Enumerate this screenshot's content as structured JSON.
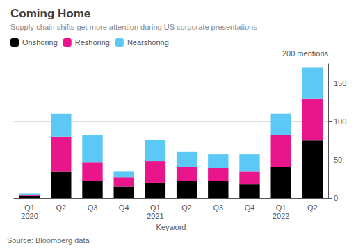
{
  "chart_data": {
    "type": "bar",
    "stacked": true,
    "title": "Coming Home",
    "subtitle": "Supply-chain shifts get more attention during US corporate presentations",
    "xlabel": "Keyword",
    "ylabel": "200 mentions",
    "annotations": [
      "Source: Bloomberg data"
    ],
    "categories": [
      "Q1\n2020",
      "Q2",
      "Q3",
      "Q4",
      "Q1\n2021",
      "Q2",
      "Q3",
      "Q4",
      "Q1\n2022",
      "Q2"
    ],
    "series": [
      {
        "name": "Onshoring",
        "color": "#000000",
        "values": [
          3,
          35,
          22,
          15,
          20,
          22,
          22,
          18,
          40,
          75
        ]
      },
      {
        "name": "Reshoring",
        "color": "#e8168a",
        "values": [
          1,
          45,
          25,
          12,
          28,
          18,
          17,
          17,
          42,
          55
        ]
      },
      {
        "name": "Nearshoring",
        "color": "#5bc8f5",
        "values": [
          2,
          30,
          35,
          8,
          28,
          20,
          18,
          22,
          28,
          40
        ]
      }
    ],
    "ylim": [
      0,
      175
    ],
    "yticks": [
      0,
      50,
      100,
      150
    ],
    "grid": true,
    "legend": "upper left"
  }
}
